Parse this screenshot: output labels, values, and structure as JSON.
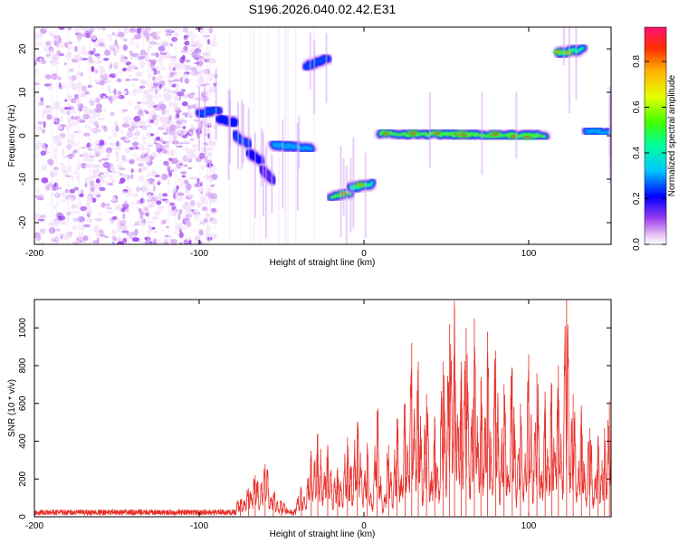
{
  "title": "S196.2026.040.02.42.E31",
  "chart_data": [
    {
      "type": "heatmap",
      "xlabel": "Height of straight line (km)",
      "ylabel": "Frequency (Hz)",
      "xlim": [
        -200,
        150
      ],
      "ylim": [
        -25,
        25
      ],
      "x_ticks": [
        -200,
        -100,
        0,
        100
      ],
      "y_ticks": [
        -20,
        -10,
        0,
        10,
        20
      ],
      "colorbar": {
        "label": "Normalized spectral amplitude",
        "range": [
          0,
          0.95
        ],
        "ticks": [
          0.0,
          0.2,
          0.4,
          0.6,
          0.8
        ],
        "tick_labels": [
          "0.0",
          "0.2",
          "0.4",
          "0.6",
          "0.8"
        ]
      },
      "segments": [
        {
          "x": [
            -200,
            -90
          ],
          "freq": [
            -25,
            25
          ],
          "amp": 0.05,
          "kind": "noise"
        },
        {
          "x": [
            -100,
            -88
          ],
          "freq": [
            5,
            6
          ],
          "amp": 0.25
        },
        {
          "x": [
            -88,
            -78
          ],
          "freq": [
            4,
            3
          ],
          "amp": 0.22
        },
        {
          "x": [
            -78,
            -70
          ],
          "freq": [
            0,
            -2
          ],
          "amp": 0.25
        },
        {
          "x": [
            -70,
            -62
          ],
          "freq": [
            -4,
            -6
          ],
          "amp": 0.2
        },
        {
          "x": [
            -62,
            -55
          ],
          "freq": [
            -8,
            -10
          ],
          "amp": 0.15
        },
        {
          "x": [
            -55,
            -32
          ],
          "freq": [
            -2,
            -3
          ],
          "amp": 0.3
        },
        {
          "x": [
            -35,
            -22
          ],
          "freq": [
            16,
            18
          ],
          "amp": 0.25
        },
        {
          "x": [
            -20,
            -8
          ],
          "freq": [
            -14,
            -13
          ],
          "amp": 0.55
        },
        {
          "x": [
            -8,
            5
          ],
          "freq": [
            -12,
            -11
          ],
          "amp": 0.45
        },
        {
          "x": [
            10,
            110
          ],
          "freq": [
            0.5,
            0
          ],
          "amp": 0.55
        },
        {
          "x": [
            118,
            133
          ],
          "freq": [
            19,
            20
          ],
          "amp": 0.45
        },
        {
          "x": [
            135,
            150
          ],
          "freq": [
            1,
            1
          ],
          "amp": 0.3
        }
      ]
    },
    {
      "type": "line",
      "xlabel": "Height of straight line (km)",
      "ylabel": "SNR (10 * v/v)",
      "xlim": [
        -200,
        150
      ],
      "ylim": [
        0,
        1150
      ],
      "x_ticks": [
        -200,
        -100,
        0,
        100
      ],
      "y_ticks": [
        0,
        200,
        400,
        600,
        800,
        1000
      ],
      "color": "#e8302a",
      "peaks": [
        {
          "x": -75,
          "y": 90
        },
        {
          "x": -70,
          "y": 150
        },
        {
          "x": -66,
          "y": 220
        },
        {
          "x": -60,
          "y": 280
        },
        {
          "x": -55,
          "y": 120
        },
        {
          "x": -50,
          "y": 80
        },
        {
          "x": -38,
          "y": 150
        },
        {
          "x": -32,
          "y": 320
        },
        {
          "x": -28,
          "y": 440
        },
        {
          "x": -22,
          "y": 380
        },
        {
          "x": -16,
          "y": 260
        },
        {
          "x": -10,
          "y": 420
        },
        {
          "x": -4,
          "y": 500
        },
        {
          "x": 2,
          "y": 390
        },
        {
          "x": 8,
          "y": 560
        },
        {
          "x": 15,
          "y": 380
        },
        {
          "x": 20,
          "y": 520
        },
        {
          "x": 25,
          "y": 600
        },
        {
          "x": 29,
          "y": 920
        },
        {
          "x": 33,
          "y": 820
        },
        {
          "x": 38,
          "y": 650
        },
        {
          "x": 43,
          "y": 520
        },
        {
          "x": 48,
          "y": 820
        },
        {
          "x": 52,
          "y": 1020
        },
        {
          "x": 55,
          "y": 1110
        },
        {
          "x": 59,
          "y": 820
        },
        {
          "x": 62,
          "y": 1000
        },
        {
          "x": 67,
          "y": 1050
        },
        {
          "x": 71,
          "y": 720
        },
        {
          "x": 75,
          "y": 980
        },
        {
          "x": 80,
          "y": 880
        },
        {
          "x": 85,
          "y": 700
        },
        {
          "x": 90,
          "y": 780
        },
        {
          "x": 95,
          "y": 600
        },
        {
          "x": 100,
          "y": 860
        },
        {
          "x": 105,
          "y": 760
        },
        {
          "x": 110,
          "y": 620
        },
        {
          "x": 114,
          "y": 700
        },
        {
          "x": 118,
          "y": 800
        },
        {
          "x": 123,
          "y": 1150
        },
        {
          "x": 127,
          "y": 650
        },
        {
          "x": 132,
          "y": 560
        },
        {
          "x": 137,
          "y": 470
        },
        {
          "x": 142,
          "y": 420
        },
        {
          "x": 146,
          "y": 470
        },
        {
          "x": 149,
          "y": 610
        }
      ]
    }
  ]
}
